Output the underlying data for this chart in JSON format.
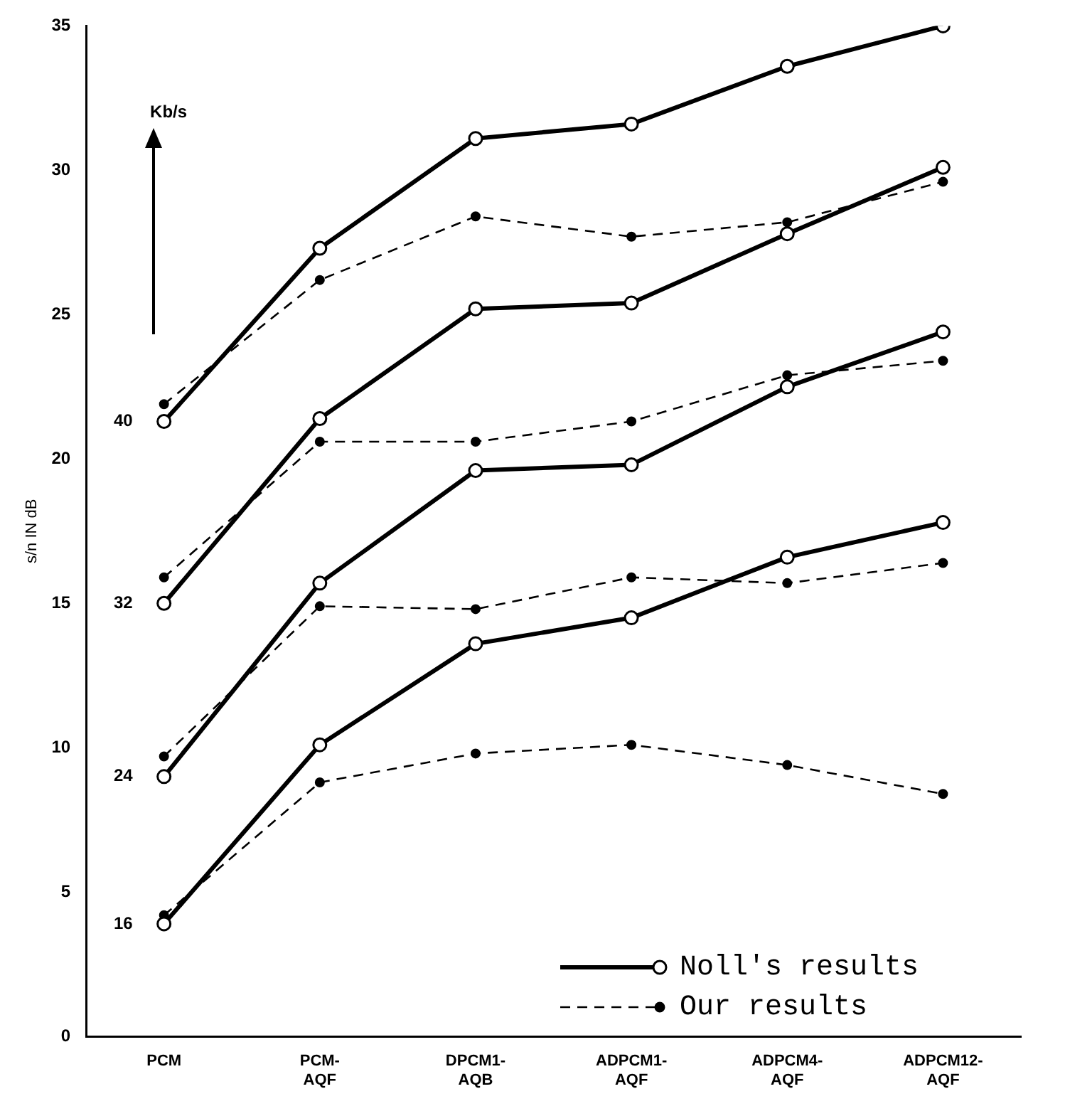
{
  "chart_data": {
    "type": "line",
    "ylabel": "s/n IN dB",
    "categories": [
      "PCM",
      "PCM-AQF",
      "DPCM1-AQB",
      "ADPCM1-AQF",
      "ADPCM4-AQF",
      "ADPCM12-AQF"
    ],
    "series": [
      {
        "name": "Noll's results",
        "color": "#000000",
        "line_style": "solid",
        "values": [
          21.3,
          27.3,
          31.1,
          31.6,
          33.6,
          35.0
        ]
      },
      {
        "color": "#000000",
        "line_style": "solid",
        "values": [
          15.0,
          21.4,
          25.2,
          25.4,
          27.8,
          30.1
        ]
      },
      {
        "color": "#000000",
        "line_style": "solid",
        "values": [
          9.0,
          15.7,
          19.6,
          19.8,
          22.5,
          24.4
        ]
      },
      {
        "color": "#000000",
        "line_style": "solid",
        "values": [
          3.9,
          10.1,
          13.6,
          14.5,
          16.6,
          17.8
        ]
      },
      {
        "name": "Our results",
        "color": "#000000",
        "line_style": "dashed",
        "values": [
          21.9,
          26.2,
          28.4,
          27.7,
          28.2,
          29.6
        ]
      },
      {
        "color": "#000000",
        "line_style": "dashed",
        "values": [
          15.9,
          20.6,
          20.6,
          21.3,
          22.9,
          23.4
        ]
      },
      {
        "color": "#000000",
        "line_style": "dashed",
        "values": [
          9.7,
          14.9,
          14.8,
          15.9,
          15.7,
          16.4
        ]
      },
      {
        "color": "#000000",
        "line_style": "dashed",
        "values": [
          4.2,
          8.8,
          9.8,
          10.1,
          9.4,
          8.4
        ]
      }
    ],
    "ylim": [
      0,
      35
    ],
    "yticks": [
      0,
      5,
      10,
      15,
      20,
      25,
      30,
      35
    ],
    "grid": false,
    "legend": "bottom right",
    "marker": "circle",
    "annotations": [
      "Kb/s",
      {
        "text": "40",
        "x": "PCM",
        "y": 21.3
      },
      {
        "text": "32",
        "x": "PCM",
        "y": 15.0
      },
      {
        "text": "24",
        "x": "PCM",
        "y": 9.0
      },
      {
        "text": "16",
        "x": "PCM",
        "y": 3.9
      }
    ]
  }
}
